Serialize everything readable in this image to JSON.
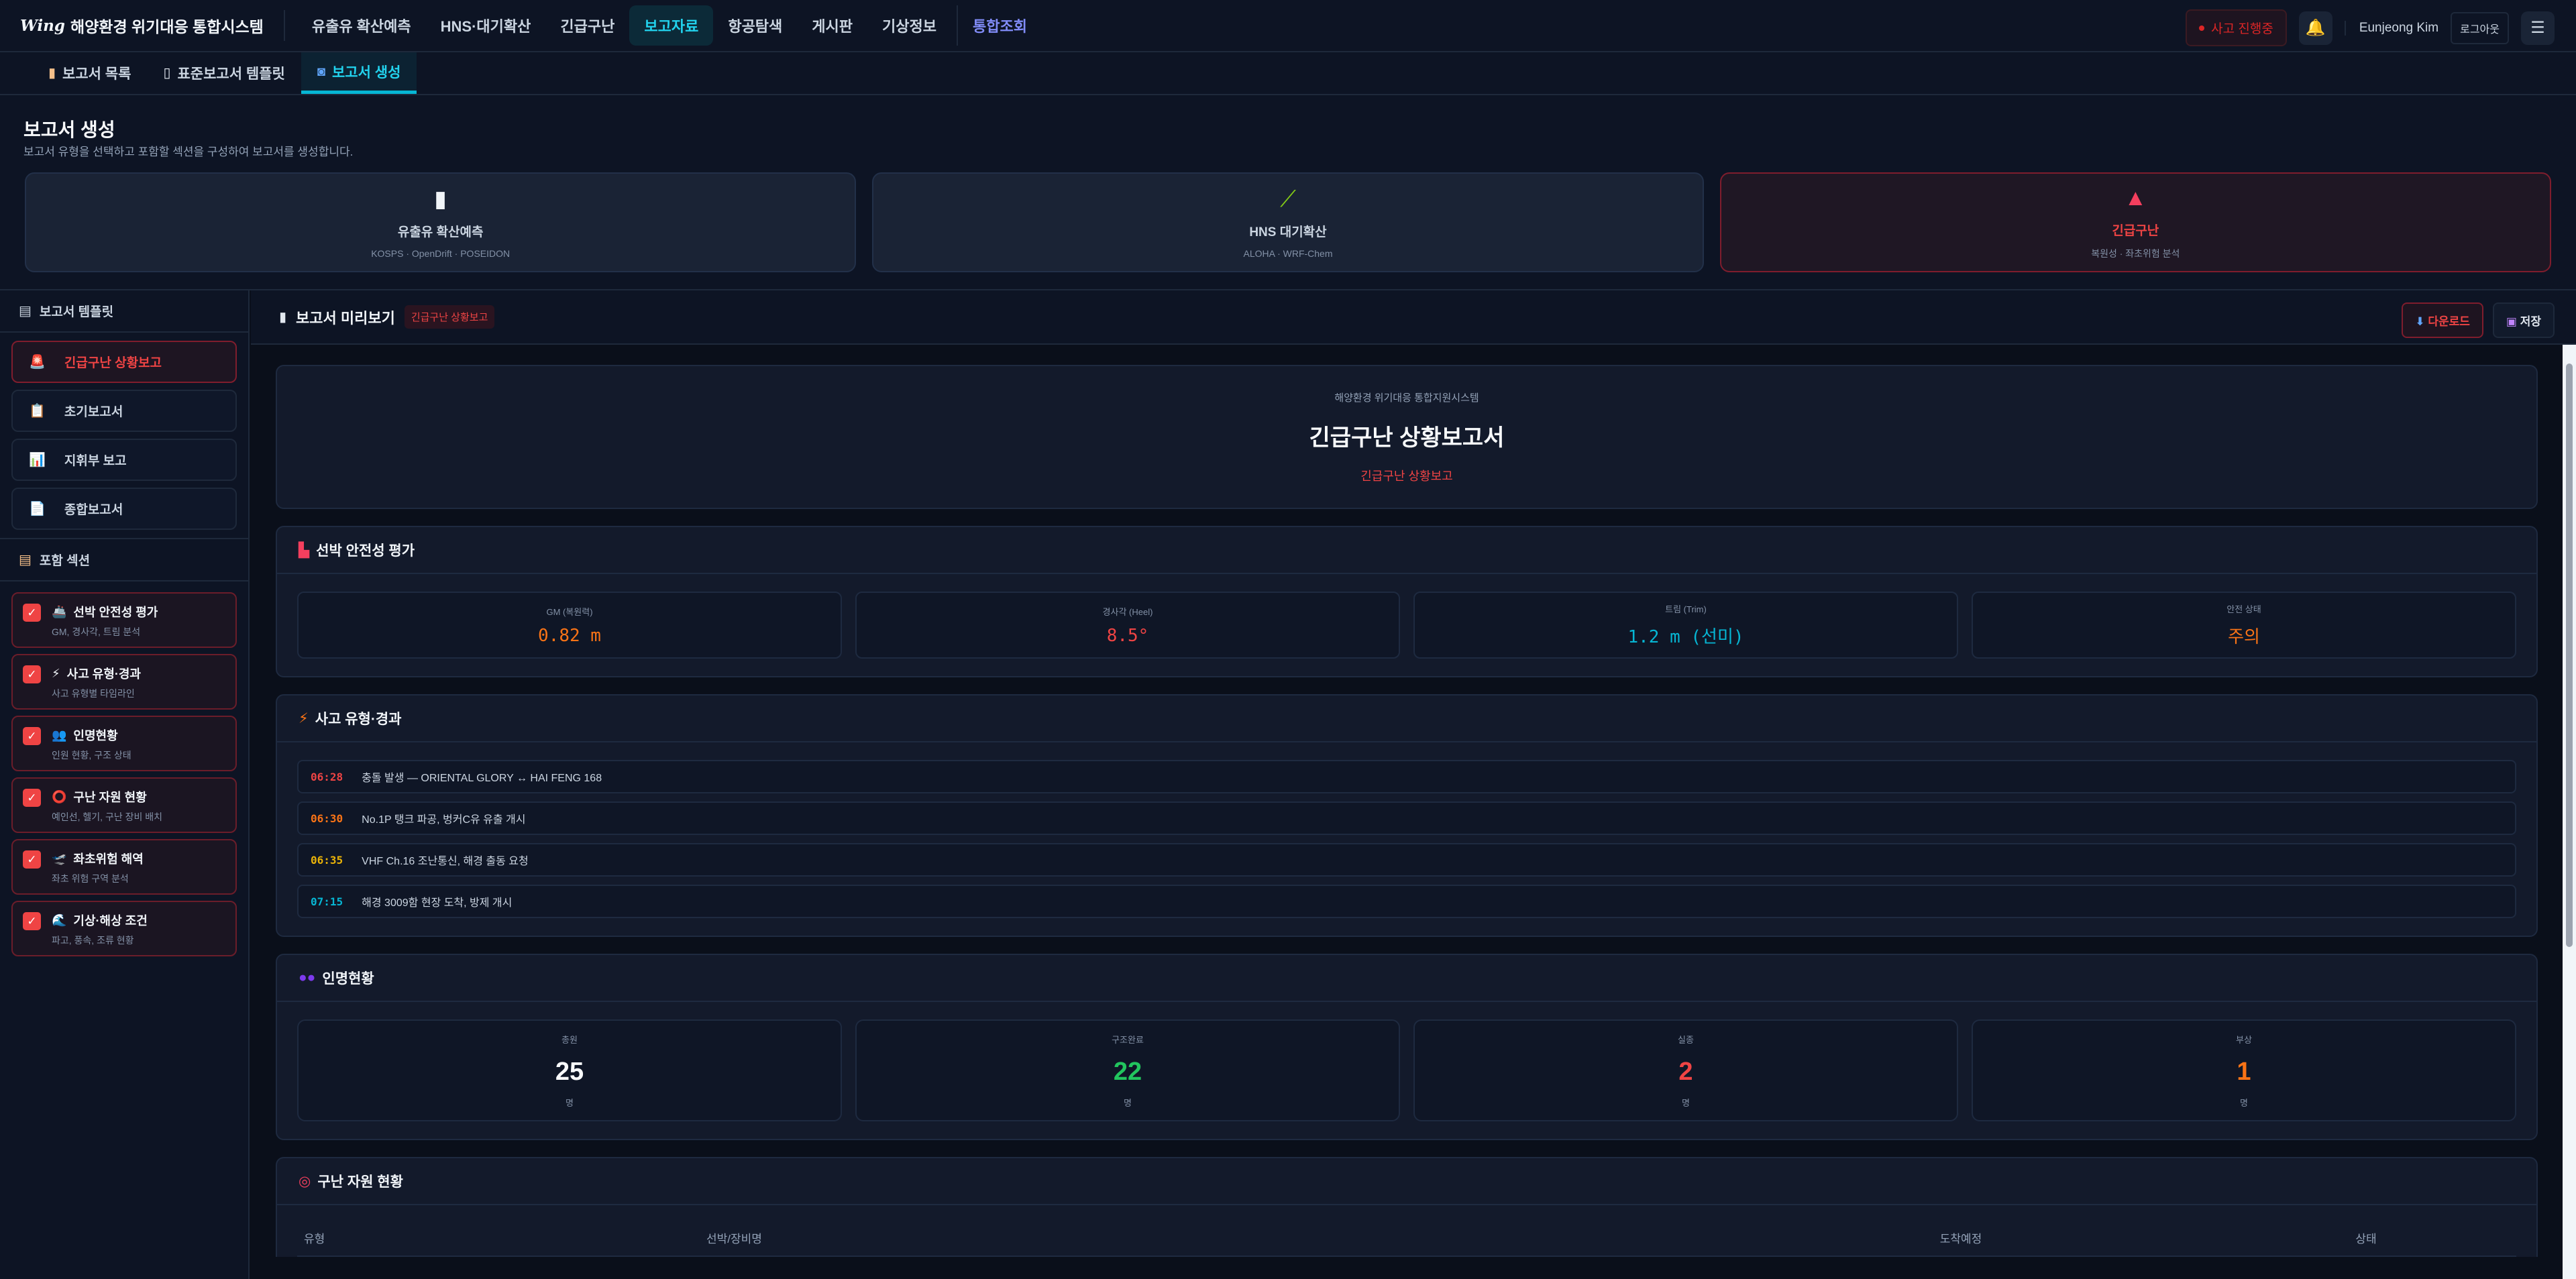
{
  "app": {
    "logo_mark": "Wing",
    "title": "해양환경 위기대응 통합시스템"
  },
  "nav": {
    "items": [
      {
        "label": "유출유 확산예측"
      },
      {
        "label": "HNS·대기확산"
      },
      {
        "label": "긴급구난"
      },
      {
        "label": "보고자료",
        "active": true
      },
      {
        "label": "항공탐색"
      },
      {
        "label": "게시판"
      },
      {
        "label": "기상정보"
      },
      {
        "label": "통합조회"
      }
    ]
  },
  "header_right": {
    "incident_badge": "사고 진행중",
    "bell_icon": "🔔",
    "user": "Eunjeong Kim",
    "logout": "로그아웃",
    "menu_icon": "☰"
  },
  "subtabs": [
    {
      "label": "보고서 목록",
      "icon": "clipboard"
    },
    {
      "label": "표준보고서 템플릿",
      "icon": "document"
    },
    {
      "label": "보고서 생성",
      "icon": "refresh",
      "active": true
    }
  ],
  "page": {
    "title": "보고서 생성",
    "subtitle": "보고서 유형을 선택하고 포함할 섹션을 구성하여 보고서를 생성합니다."
  },
  "type_cards": [
    {
      "label": "유출유 확산예측",
      "sub": "KOSPS · OpenDrift · POSEIDON",
      "icon": "oil-drum"
    },
    {
      "label": "HNS 대기확산",
      "sub": "ALOHA · WRF-Chem",
      "icon": "test-tube"
    },
    {
      "label": "긴급구난",
      "sub": "복원성 · 좌초위험 분석",
      "icon": "siren",
      "selected": true
    }
  ],
  "sidebar": {
    "templates_title": "보고서 템플릿",
    "templates": [
      {
        "label": "긴급구난 상황보고",
        "icon": "🚨",
        "selected": true
      },
      {
        "label": "초기보고서",
        "icon": "📋"
      },
      {
        "label": "지휘부 보고",
        "icon": "📊"
      },
      {
        "label": "종합보고서",
        "icon": "📄"
      }
    ],
    "sections_title": "포함 섹션",
    "sections": [
      {
        "label": "선박 안전성 평가",
        "desc": "GM, 경사각, 트림 분석",
        "icon": "🚢",
        "checked": true
      },
      {
        "label": "사고 유형·경과",
        "desc": "사고 유형별 타임라인",
        "icon": "⚡",
        "checked": true
      },
      {
        "label": "인명현황",
        "desc": "인원 현황, 구조 상태",
        "icon": "👥",
        "checked": true
      },
      {
        "label": "구난 자원 현황",
        "desc": "예인선, 헬기, 구난 장비 배치",
        "icon": "⭕",
        "checked": true
      },
      {
        "label": "좌초위험 해역",
        "desc": "좌초 위험 구역 분석",
        "icon": "🛫",
        "checked": true
      },
      {
        "label": "기상·해상 조건",
        "desc": "파고, 풍속, 조류 현황",
        "icon": "🌊",
        "checked": true
      }
    ]
  },
  "preview": {
    "title": "보고서 미리보기",
    "tag": "긴급구난 상황보고",
    "download": "다운로드",
    "save": "저장",
    "doc": {
      "org": "해양환경 위기대응 통합지원시스템",
      "title": "긴급구난 상황보고서",
      "subtitle": "긴급구난 상황보고"
    },
    "stability": {
      "title": "선박 안전성 평가",
      "items": [
        {
          "label": "GM (복원력)",
          "value": "0.82 m",
          "color": "#f97316"
        },
        {
          "label": "경사각 (Heel)",
          "value": "8.5°",
          "color": "#ef4444"
        },
        {
          "label": "트림 (Trim)",
          "value": "1.2 m (선미)",
          "color": "#06b6d4"
        },
        {
          "label": "안전 상태",
          "value": "주의",
          "color": "#f97316"
        }
      ]
    },
    "timeline": {
      "title": "사고 유형·경과",
      "events": [
        {
          "time": "06:28",
          "text": "충돌 발생 — ORIENTAL GLORY ↔ HAI FENG 168",
          "color": "#ef4444"
        },
        {
          "time": "06:30",
          "text": "No.1P 탱크 파공, 벙커C유 유출 개시",
          "color": "#f97316"
        },
        {
          "time": "06:35",
          "text": "VHF Ch.16 조난통신, 해경 출동 요청",
          "color": "#eab308"
        },
        {
          "time": "07:15",
          "text": "해경 3009함 현장 도착, 방제 개시",
          "color": "#06b6d4"
        }
      ]
    },
    "persons": {
      "title": "인명현황",
      "items": [
        {
          "label": "총원",
          "value": "25",
          "unit": "명",
          "color": "#f8fafc"
        },
        {
          "label": "구조완료",
          "value": "22",
          "unit": "명",
          "color": "#22c55e"
        },
        {
          "label": "실종",
          "value": "2",
          "unit": "명",
          "color": "#ef4444"
        },
        {
          "label": "부상",
          "value": "1",
          "unit": "명",
          "color": "#f97316"
        }
      ]
    },
    "resources": {
      "title": "구난 자원 현황",
      "columns": [
        "유형",
        "선박/장비명",
        "도착예정",
        "상태"
      ]
    }
  }
}
